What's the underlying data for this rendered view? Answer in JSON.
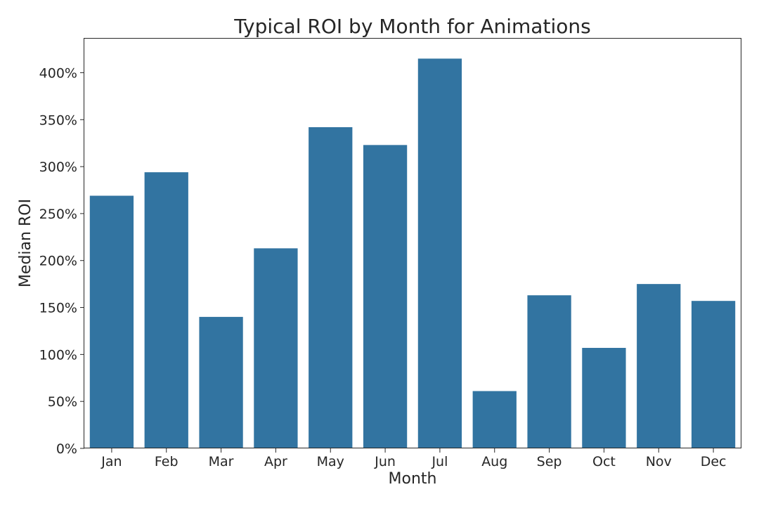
{
  "chart_data": {
    "type": "bar",
    "title": "Typical ROI by Month for Animations",
    "xlabel": "Month",
    "ylabel": "Median ROI",
    "categories": [
      "Jan",
      "Feb",
      "Mar",
      "Apr",
      "May",
      "Jun",
      "Jul",
      "Aug",
      "Sep",
      "Oct",
      "Nov",
      "Dec"
    ],
    "values": [
      269,
      294,
      140,
      213,
      342,
      323,
      415,
      61,
      163,
      107,
      175,
      157
    ],
    "value_unit": "%",
    "ylim": [
      0,
      437
    ],
    "yticks": [
      0,
      50,
      100,
      150,
      200,
      250,
      300,
      350,
      400
    ],
    "ytick_labels": [
      "0%",
      "50%",
      "100%",
      "150%",
      "200%",
      "250%",
      "300%",
      "350%",
      "400%"
    ],
    "grid": false,
    "legend": "none",
    "bar_color": "#3274a1"
  }
}
